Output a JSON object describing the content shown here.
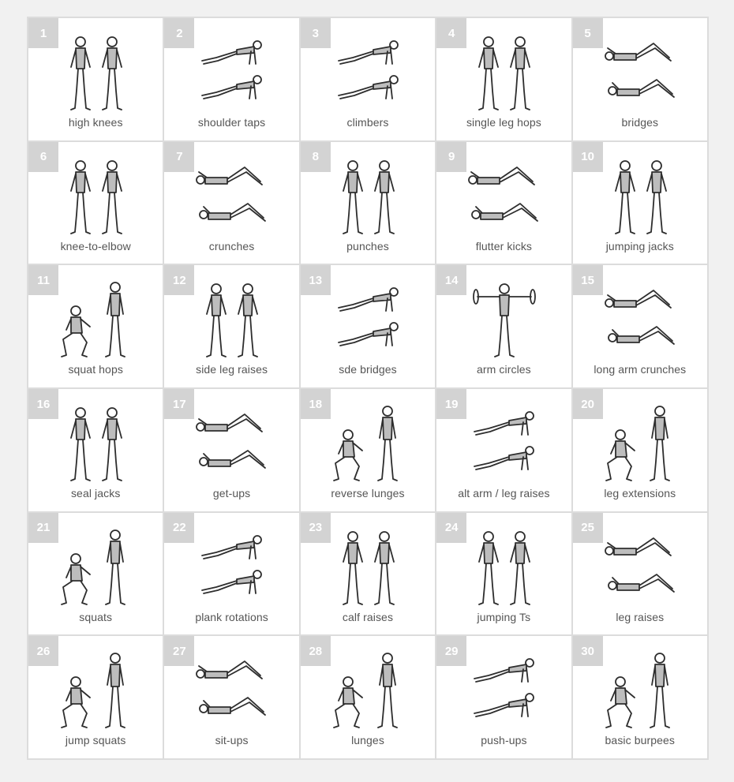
{
  "colors": {
    "background": "#f1f1f1",
    "grid_lines": "#dcdcdc",
    "card": "#ffffff",
    "number_badge": "#d3d3d3",
    "number_text": "#ffffff",
    "label_text": "#555555"
  },
  "exercises": [
    {
      "number": "1",
      "label": "high knees",
      "pose": "standing-pair"
    },
    {
      "number": "2",
      "label": "shoulder taps",
      "pose": "plank-pair"
    },
    {
      "number": "3",
      "label": "climbers",
      "pose": "plank-pair"
    },
    {
      "number": "4",
      "label": "single leg hops",
      "pose": "standing-pair"
    },
    {
      "number": "5",
      "label": "bridges",
      "pose": "lying-pair"
    },
    {
      "number": "6",
      "label": "knee-to-elbow",
      "pose": "standing-pair"
    },
    {
      "number": "7",
      "label": "crunches",
      "pose": "lying-pair"
    },
    {
      "number": "8",
      "label": "punches",
      "pose": "standing-pair"
    },
    {
      "number": "9",
      "label": "flutter kicks",
      "pose": "lying-pair"
    },
    {
      "number": "10",
      "label": "jumping jacks",
      "pose": "standing-pair"
    },
    {
      "number": "11",
      "label": "squat hops",
      "pose": "squat-pair"
    },
    {
      "number": "12",
      "label": "side leg raises",
      "pose": "standing-pair"
    },
    {
      "number": "13",
      "label": "sde bridges",
      "pose": "plank-pair"
    },
    {
      "number": "14",
      "label": "arm circles",
      "pose": "standing-single"
    },
    {
      "number": "15",
      "label": "long arm crunches",
      "pose": "lying-pair"
    },
    {
      "number": "16",
      "label": "seal jacks",
      "pose": "standing-pair"
    },
    {
      "number": "17",
      "label": "get-ups",
      "pose": "lying-pair"
    },
    {
      "number": "18",
      "label": "reverse lunges",
      "pose": "squat-pair"
    },
    {
      "number": "19",
      "label": "alt arm / leg raises",
      "pose": "plank-pair"
    },
    {
      "number": "20",
      "label": "leg extensions",
      "pose": "squat-pair"
    },
    {
      "number": "21",
      "label": "squats",
      "pose": "squat-pair"
    },
    {
      "number": "22",
      "label": "plank rotations",
      "pose": "plank-pair"
    },
    {
      "number": "23",
      "label": "calf raises",
      "pose": "standing-pair"
    },
    {
      "number": "24",
      "label": "jumping Ts",
      "pose": "standing-pair"
    },
    {
      "number": "25",
      "label": "leg raises",
      "pose": "lying-pair"
    },
    {
      "number": "26",
      "label": "jump squats",
      "pose": "squat-pair"
    },
    {
      "number": "27",
      "label": "sit-ups",
      "pose": "lying-pair"
    },
    {
      "number": "28",
      "label": "lunges",
      "pose": "squat-pair"
    },
    {
      "number": "29",
      "label": "push-ups",
      "pose": "plank-pair"
    },
    {
      "number": "30",
      "label": "basic burpees",
      "pose": "squat-pair"
    }
  ]
}
